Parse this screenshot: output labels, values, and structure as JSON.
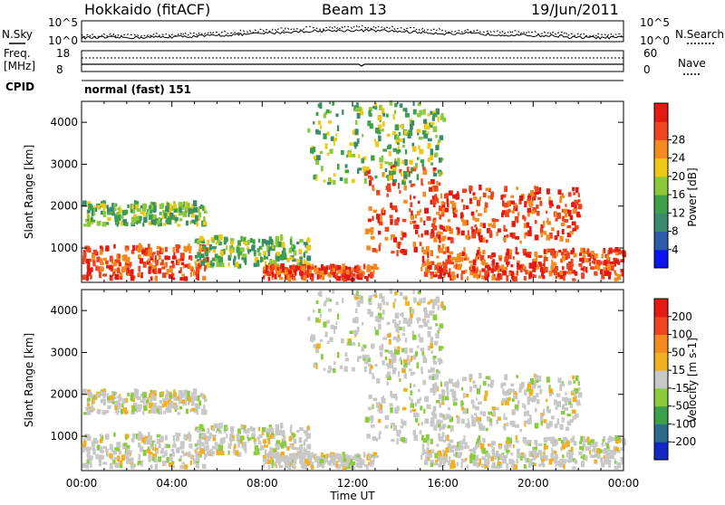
{
  "header": {
    "station": "Hokkaido (fitACF)",
    "beam": "Beam 13",
    "date": "19/Jun/2011"
  },
  "noise_panel": {
    "left_label": "N.Sky",
    "right_label": "N.Search",
    "ticks_left": [
      "10^5",
      "10^0"
    ],
    "ticks_right": [
      "10^5",
      "10^0"
    ]
  },
  "freq_panel": {
    "left_label_1": "Freq.",
    "left_label_2": "[MHz]",
    "left_ticks": [
      "18",
      "8"
    ],
    "right_label": "Nave",
    "right_ticks": [
      "60",
      "0"
    ]
  },
  "cpid_panel": {
    "label": "CPID",
    "value": "normal (fast) 151"
  },
  "chart_data": [
    {
      "type": "heatmap",
      "title": "",
      "parameter": "Power",
      "ylabel": "Slant Range [km]",
      "xlabel": "",
      "x_ticks": [
        "00:00",
        "04:00",
        "08:00",
        "12:00",
        "16:00",
        "20:00",
        "00:00"
      ],
      "y_ticks": [
        "1000",
        "2000",
        "3000",
        "4000"
      ],
      "ylim": [
        180,
        4500
      ],
      "xlim_hours": [
        0,
        24
      ],
      "colorbar": {
        "label": "Power [dB]",
        "tick_labels": [
          "4",
          "8",
          "12",
          "16",
          "20",
          "24",
          "28"
        ],
        "colors": [
          "#0a14f0",
          "#2b5aa8",
          "#3a8a6c",
          "#3ea04a",
          "#8ac83c",
          "#f0c814",
          "#f58a1e",
          "#ee4420",
          "#e41a12"
        ]
      },
      "echo_bands": [
        {
          "t": [
            0,
            5.5
          ],
          "range": [
            200,
            1000
          ],
          "level": "high"
        },
        {
          "t": [
            0,
            5.5
          ],
          "range": [
            1500,
            2000
          ],
          "level": "mid"
        },
        {
          "t": [
            5,
            10
          ],
          "range": [
            500,
            1200
          ],
          "level": "mid"
        },
        {
          "t": [
            8,
            13
          ],
          "range": [
            200,
            500
          ],
          "level": "high"
        },
        {
          "t": [
            12.5,
            16
          ],
          "range": [
            800,
            2900
          ],
          "level": "high"
        },
        {
          "t": [
            15.5,
            22
          ],
          "range": [
            1100,
            2400
          ],
          "level": "high"
        },
        {
          "t": [
            10,
            16
          ],
          "range": [
            2500,
            4400
          ],
          "level": "mid"
        },
        {
          "t": [
            15,
            24
          ],
          "range": [
            200,
            900
          ],
          "level": "high"
        }
      ]
    },
    {
      "type": "heatmap",
      "title": "",
      "parameter": "Velocity",
      "ylabel": "Slant Range [km]",
      "xlabel": "Time UT",
      "x_ticks": [
        "00:00",
        "04:00",
        "08:00",
        "12:00",
        "16:00",
        "20:00",
        "00:00"
      ],
      "y_ticks": [
        "1000",
        "2000",
        "3000",
        "4000"
      ],
      "ylim": [
        180,
        4500
      ],
      "xlim_hours": [
        0,
        24
      ],
      "colorbar": {
        "label": "Velocity [m s-1]",
        "tick_labels": [
          "200",
          "100",
          "50",
          "15",
          "-15",
          "-50",
          "-100",
          "-200"
        ],
        "colors": [
          "#1428c8",
          "#2a6a8a",
          "#3aa04a",
          "#8acc3c",
          "#c8c8c8",
          "#f0b020",
          "#f58a1e",
          "#ee4420",
          "#e41a12"
        ]
      }
    }
  ]
}
